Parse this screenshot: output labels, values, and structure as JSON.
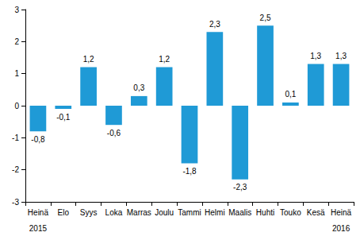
{
  "chart_data": {
    "type": "bar",
    "categories": [
      "Heinä",
      "Elo",
      "Syys",
      "Loka",
      "Marras",
      "Joulu",
      "Tammi",
      "Helmi",
      "Maalis",
      "Huhti",
      "Touko",
      "Kesä",
      "Heinä"
    ],
    "year_labels": [
      "2015",
      null,
      null,
      null,
      null,
      null,
      null,
      null,
      null,
      null,
      null,
      null,
      "2016"
    ],
    "values": [
      -0.8,
      -0.1,
      1.2,
      -0.6,
      0.3,
      1.2,
      -1.8,
      2.3,
      -2.3,
      2.5,
      0.1,
      1.3,
      1.3
    ],
    "value_labels": [
      "-0,8",
      "-0,1",
      "1,2",
      "-0,6",
      "0,3",
      "1,2",
      "-1,8",
      "2,3",
      "-2,3",
      "2,5",
      "0,1",
      "1,3",
      "1,3"
    ],
    "color": "#1f9ad6",
    "ylim": [
      -3,
      3
    ],
    "yticks": [
      -3,
      -2,
      -1,
      0,
      1,
      2,
      3
    ],
    "grid": false,
    "data_labels": true
  }
}
